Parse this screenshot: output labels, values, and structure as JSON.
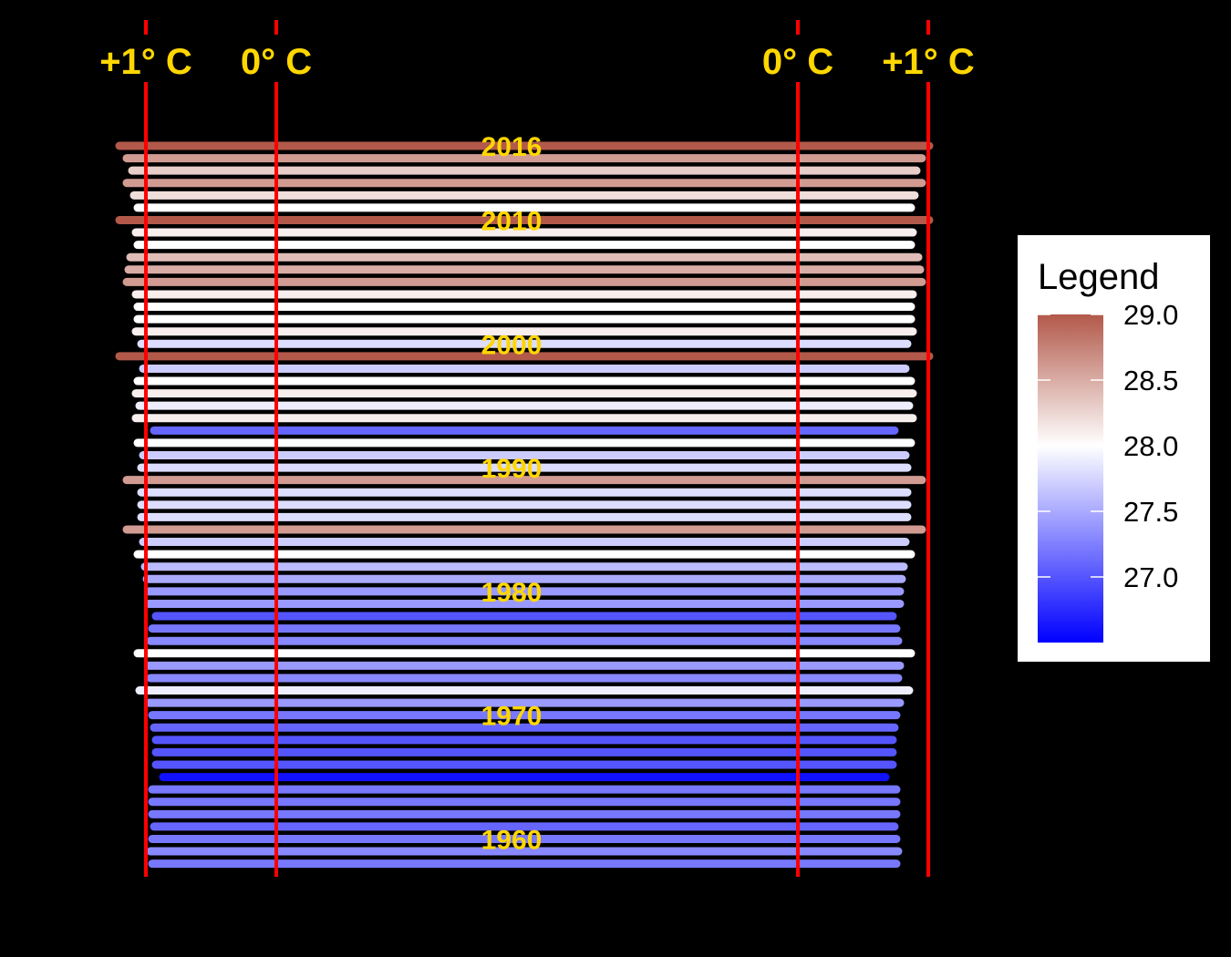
{
  "colors": {
    "background": "#000000",
    "reference_line": "#FF0000",
    "label": "#FFD700",
    "scale_low": "#0000FF",
    "scale_mid": "#FFFFFF",
    "scale_high": "#B2594A"
  },
  "chart_data": {
    "type": "line",
    "description_units": "Each horizontal bar is one year, colored by its annual mean temperature (degrees C).",
    "year_range": [
      1958,
      2016
    ],
    "year_labels": [
      "2016",
      "2010",
      "2000",
      "1990",
      "1980",
      "1970",
      "1960"
    ],
    "reference_lines": [
      {
        "label": "+1° C",
        "side": "left"
      },
      {
        "label": "0° C",
        "side": "left"
      },
      {
        "label": "0° C",
        "side": "right"
      },
      {
        "label": "+1° C",
        "side": "right"
      }
    ],
    "legend": {
      "title": "Legend",
      "position": "right",
      "ticks": [
        "29.0",
        "28.5",
        "28.0",
        "27.5",
        "27.0"
      ],
      "tick_values": [
        29.0,
        28.5,
        28.0,
        27.5,
        27.0
      ],
      "range": [
        26.5,
        29.0
      ]
    },
    "series": {
      "years": [
        2016,
        2015,
        2014,
        2013,
        2012,
        2011,
        2010,
        2009,
        2008,
        2007,
        2006,
        2005,
        2004,
        2003,
        2002,
        2001,
        2000,
        1999,
        1998,
        1997,
        1996,
        1995,
        1994,
        1993,
        1992,
        1991,
        1990,
        1989,
        1988,
        1987,
        1986,
        1985,
        1984,
        1983,
        1982,
        1981,
        1980,
        1979,
        1978,
        1977,
        1976,
        1975,
        1974,
        1973,
        1972,
        1971,
        1970,
        1969,
        1968,
        1967,
        1966,
        1965,
        1964,
        1963,
        1962,
        1961,
        1960,
        1959,
        1958
      ],
      "temperature": [
        29.0,
        28.6,
        28.3,
        28.6,
        28.2,
        28.0,
        29.0,
        28.1,
        28.0,
        28.4,
        28.5,
        28.6,
        28.1,
        28.0,
        28.0,
        28.1,
        27.8,
        29.0,
        27.7,
        28.0,
        28.1,
        27.9,
        28.1,
        27.1,
        28.0,
        27.7,
        27.8,
        28.6,
        27.8,
        27.8,
        27.8,
        28.6,
        27.7,
        28.0,
        27.6,
        27.5,
        27.4,
        27.4,
        27.0,
        27.2,
        27.3,
        28.0,
        27.4,
        27.3,
        27.9,
        27.4,
        27.2,
        27.1,
        27.0,
        27.0,
        27.0,
        26.6,
        27.2,
        27.2,
        27.2,
        27.1,
        27.2,
        27.3,
        27.2
      ]
    }
  }
}
